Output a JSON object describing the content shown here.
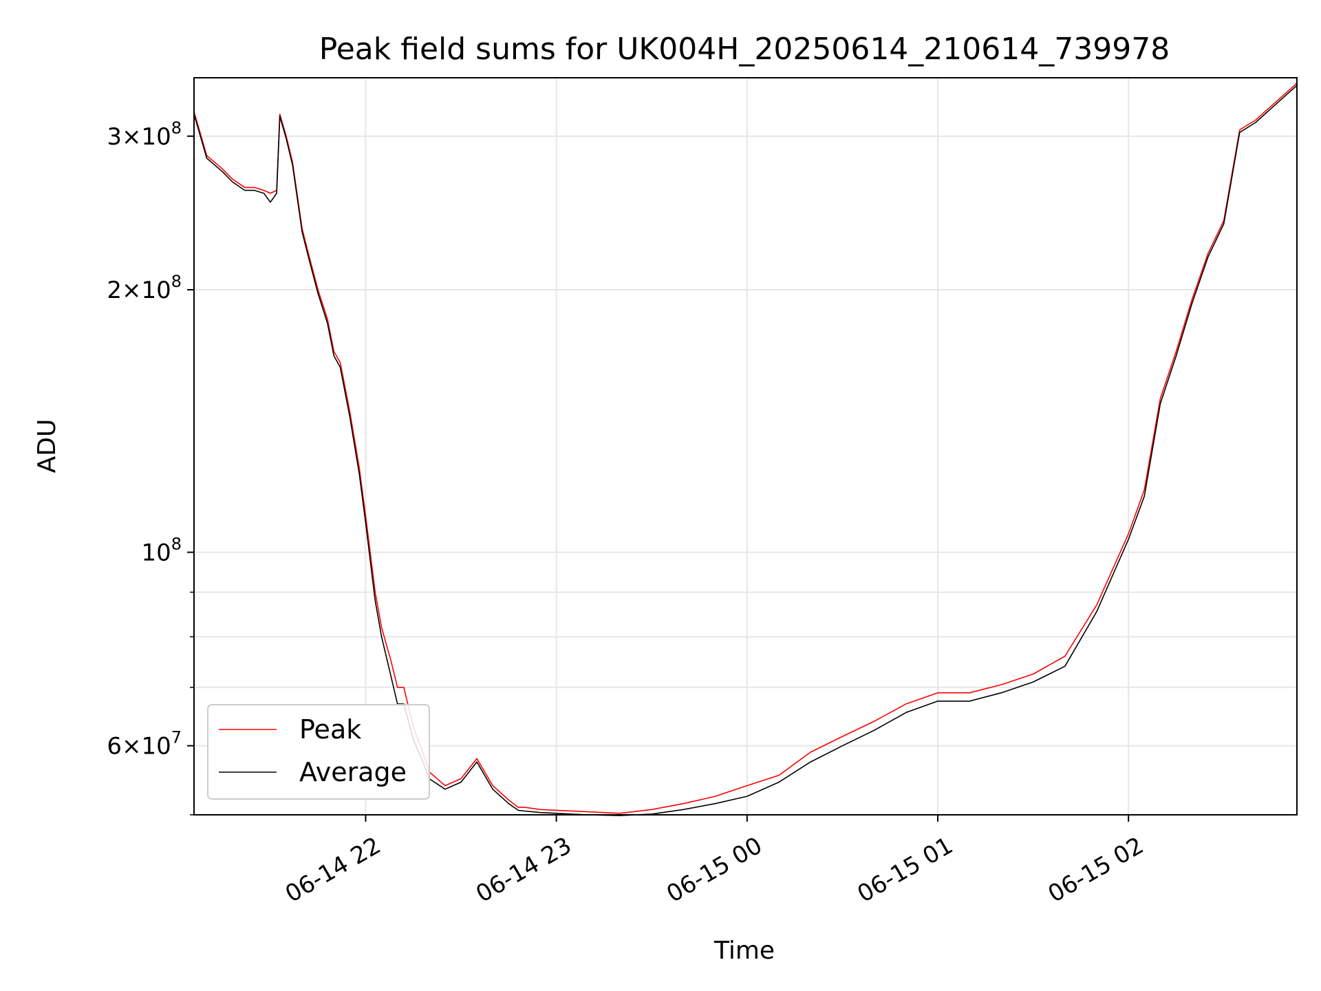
{
  "chart_data": {
    "type": "line",
    "title": "Peak field sums for UK004H_20250614_210614_739978",
    "xlabel": "Time",
    "ylabel": "ADU",
    "y_scale": "log",
    "grid": true,
    "legend_position": "lower-left",
    "xlim": [
      "2025-06-14 21:06",
      "2025-06-15 02:53"
    ],
    "ylim": [
      50000000,
      350000000
    ],
    "x_ticks": [
      {
        "value": "2025-06-14 22:00",
        "label": "06-14 22"
      },
      {
        "value": "2025-06-14 23:00",
        "label": "06-14 23"
      },
      {
        "value": "2025-06-15 00:00",
        "label": "06-15 00"
      },
      {
        "value": "2025-06-15 01:00",
        "label": "06-15 01"
      },
      {
        "value": "2025-06-15 02:00",
        "label": "06-15 02"
      }
    ],
    "y_ticks_major": [
      {
        "value": 300000000,
        "mantissa": "3",
        "exponent": "8"
      },
      {
        "value": 200000000,
        "mantissa": "2",
        "exponent": "8"
      },
      {
        "value": 100000000,
        "mantissa": "",
        "exponent": "8"
      },
      {
        "value": 60000000,
        "mantissa": "6",
        "exponent": "7"
      }
    ],
    "y_ticks_minor": [
      50000000,
      70000000,
      80000000,
      90000000
    ],
    "series": [
      {
        "name": "Peak",
        "color": "#ff0000",
        "x": [
          "2025-06-14 21:06",
          "2025-06-14 21:10",
          "2025-06-14 21:15",
          "2025-06-14 21:18",
          "2025-06-14 21:22",
          "2025-06-14 21:25",
          "2025-06-14 21:28",
          "2025-06-14 21:30",
          "2025-06-14 21:32",
          "2025-06-14 21:33",
          "2025-06-14 21:35",
          "2025-06-14 21:37",
          "2025-06-14 21:40",
          "2025-06-14 21:42",
          "2025-06-14 21:45",
          "2025-06-14 21:48",
          "2025-06-14 21:50",
          "2025-06-14 21:52",
          "2025-06-14 21:55",
          "2025-06-14 21:58",
          "2025-06-14 22:00",
          "2025-06-14 22:03",
          "2025-06-14 22:05",
          "2025-06-14 22:08",
          "2025-06-14 22:10",
          "2025-06-14 22:12",
          "2025-06-14 22:15",
          "2025-06-14 22:18",
          "2025-06-14 22:20",
          "2025-06-14 22:25",
          "2025-06-14 22:30",
          "2025-06-14 22:35",
          "2025-06-14 22:40",
          "2025-06-14 22:45",
          "2025-06-14 22:48",
          "2025-06-14 22:50",
          "2025-06-14 22:55",
          "2025-06-14 23:00",
          "2025-06-14 23:10",
          "2025-06-14 23:20",
          "2025-06-14 23:30",
          "2025-06-14 23:40",
          "2025-06-14 23:50",
          "2025-06-15 00:00",
          "2025-06-15 00:10",
          "2025-06-15 00:20",
          "2025-06-15 00:30",
          "2025-06-15 00:40",
          "2025-06-15 00:50",
          "2025-06-15 01:00",
          "2025-06-15 01:10",
          "2025-06-15 01:20",
          "2025-06-15 01:30",
          "2025-06-15 01:40",
          "2025-06-15 01:50",
          "2025-06-15 02:00",
          "2025-06-15 02:05",
          "2025-06-15 02:10",
          "2025-06-15 02:15",
          "2025-06-15 02:20",
          "2025-06-15 02:25",
          "2025-06-15 02:30",
          "2025-06-15 02:35",
          "2025-06-15 02:40",
          "2025-06-15 02:45",
          "2025-06-15 02:53"
        ],
        "values": [
          320000000,
          285000000,
          275000000,
          268000000,
          262000000,
          262000000,
          260000000,
          258000000,
          260000000,
          318000000,
          300000000,
          280000000,
          235000000,
          220000000,
          200000000,
          185000000,
          170000000,
          165000000,
          145000000,
          125000000,
          110000000,
          90000000,
          82000000,
          75000000,
          70000000,
          70000000,
          63000000,
          59000000,
          56000000,
          54000000,
          55000000,
          58000000,
          54000000,
          52000000,
          51000000,
          51000000,
          50700000,
          50600000,
          50400000,
          50200000,
          50700000,
          51500000,
          52500000,
          54000000,
          55500000,
          59000000,
          61500000,
          64000000,
          67000000,
          69000000,
          69000000,
          70500000,
          72500000,
          76000000,
          87000000,
          105000000,
          118000000,
          150000000,
          170000000,
          195000000,
          220000000,
          240000000,
          305000000,
          313000000,
          325000000,
          345000000
        ]
      },
      {
        "name": "Average",
        "color": "#000000",
        "x": [
          "2025-06-14 21:06",
          "2025-06-14 21:10",
          "2025-06-14 21:15",
          "2025-06-14 21:18",
          "2025-06-14 21:22",
          "2025-06-14 21:25",
          "2025-06-14 21:28",
          "2025-06-14 21:30",
          "2025-06-14 21:32",
          "2025-06-14 21:33",
          "2025-06-14 21:35",
          "2025-06-14 21:37",
          "2025-06-14 21:40",
          "2025-06-14 21:42",
          "2025-06-14 21:45",
          "2025-06-14 21:48",
          "2025-06-14 21:50",
          "2025-06-14 21:52",
          "2025-06-14 21:55",
          "2025-06-14 21:58",
          "2025-06-14 22:00",
          "2025-06-14 22:03",
          "2025-06-14 22:05",
          "2025-06-14 22:08",
          "2025-06-14 22:10",
          "2025-06-14 22:12",
          "2025-06-14 22:15",
          "2025-06-14 22:18",
          "2025-06-14 22:20",
          "2025-06-14 22:25",
          "2025-06-14 22:30",
          "2025-06-14 22:35",
          "2025-06-14 22:40",
          "2025-06-14 22:45",
          "2025-06-14 22:48",
          "2025-06-14 22:50",
          "2025-06-14 22:55",
          "2025-06-14 23:00",
          "2025-06-14 23:10",
          "2025-06-14 23:20",
          "2025-06-14 23:30",
          "2025-06-14 23:40",
          "2025-06-14 23:50",
          "2025-06-15 00:00",
          "2025-06-15 00:10",
          "2025-06-15 00:20",
          "2025-06-15 00:30",
          "2025-06-15 00:40",
          "2025-06-15 00:50",
          "2025-06-15 01:00",
          "2025-06-15 01:10",
          "2025-06-15 01:20",
          "2025-06-15 01:30",
          "2025-06-15 01:40",
          "2025-06-15 01:50",
          "2025-06-15 02:00",
          "2025-06-15 02:05",
          "2025-06-15 02:10",
          "2025-06-15 02:15",
          "2025-06-15 02:20",
          "2025-06-15 02:25",
          "2025-06-15 02:30",
          "2025-06-15 02:35",
          "2025-06-15 02:40",
          "2025-06-15 02:45",
          "2025-06-15 02:53"
        ],
        "values": [
          318000000,
          283000000,
          273000000,
          266000000,
          260000000,
          260000000,
          258000000,
          252000000,
          258000000,
          316000000,
          298000000,
          278000000,
          233000000,
          218000000,
          198000000,
          183000000,
          168000000,
          163000000,
          143000000,
          123000000,
          108000000,
          88000000,
          80000000,
          72000000,
          67000000,
          67000000,
          61000000,
          57500000,
          55000000,
          53500000,
          54500000,
          57500000,
          53500000,
          51500000,
          50600000,
          50500000,
          50300000,
          50200000,
          50000000,
          49900000,
          50100000,
          50700000,
          51500000,
          52500000,
          54500000,
          57500000,
          60000000,
          62500000,
          65500000,
          67500000,
          67500000,
          69000000,
          71000000,
          74000000,
          85500000,
          103500000,
          116000000,
          148000000,
          168000000,
          193000000,
          218000000,
          238000000,
          303000000,
          311000000,
          323000000,
          343000000
        ]
      }
    ]
  }
}
